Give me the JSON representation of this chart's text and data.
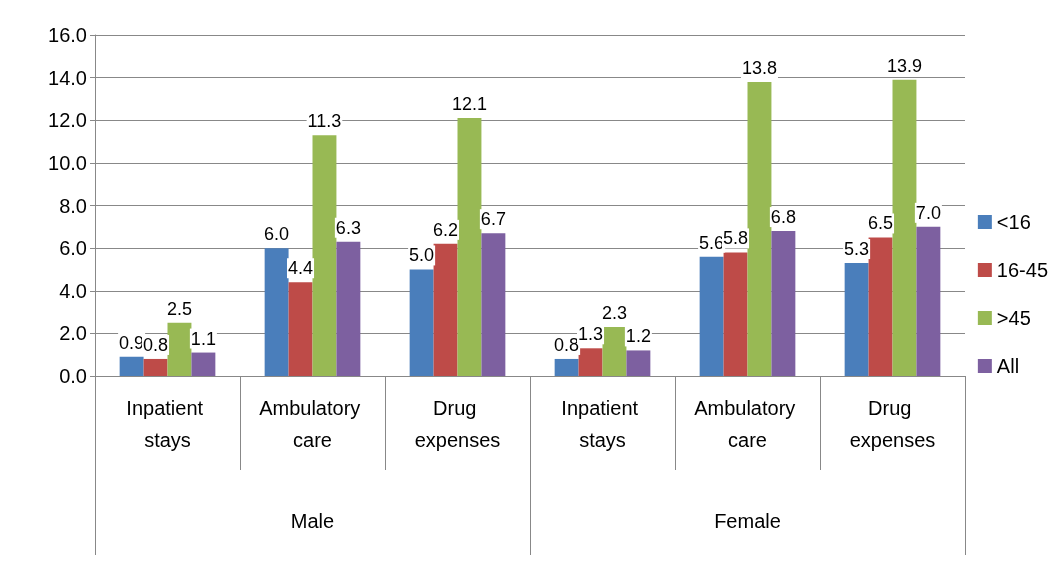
{
  "chart_data": {
    "type": "bar",
    "categories": [
      "Inpatient stays",
      "Ambulatory care",
      "Drug expenses",
      "Inpatient stays",
      "Ambulatory care",
      "Drug expenses"
    ],
    "annotations": [
      "Male",
      "Female"
    ],
    "series": [
      {
        "name": "<16",
        "color": "#4a7ebb",
        "values": [
          0.9,
          6.0,
          5.0,
          0.8,
          5.6,
          5.3
        ],
        "value_labels": [
          "0.9",
          "6.0",
          "5.0",
          "0.8",
          "5.6",
          "5.3"
        ]
      },
      {
        "name": "16-45",
        "color": "#be4b48",
        "values": [
          0.8,
          4.4,
          6.2,
          1.3,
          5.8,
          6.5
        ],
        "value_labels": [
          "0.8",
          "4.4",
          "6.2",
          "1.3",
          "5.8",
          "6.5"
        ]
      },
      {
        "name": ">45",
        "color": "#98b954",
        "values": [
          2.5,
          11.3,
          12.1,
          2.3,
          13.8,
          13.9
        ],
        "value_labels": [
          "2.5",
          "11.3",
          "12.1",
          "2.3",
          "13.8",
          "13.9"
        ]
      },
      {
        "name": "All",
        "color": "#7d60a0",
        "values": [
          1.1,
          6.3,
          6.7,
          1.2,
          6.8,
          7.0
        ],
        "value_labels": [
          "1.1",
          "6.3",
          "6.7",
          "1.2",
          "6.8",
          "7.0"
        ]
      }
    ],
    "ylim": [
      0,
      16
    ],
    "yticks": [
      {
        "value": 0,
        "label": "0.0"
      },
      {
        "value": 2,
        "label": "2.0"
      },
      {
        "value": 4,
        "label": "4.0"
      },
      {
        "value": 6,
        "label": "6.0"
      },
      {
        "value": 8,
        "label": "8.0"
      },
      {
        "value": 10,
        "label": "10.0"
      },
      {
        "value": 12,
        "label": "12.0"
      },
      {
        "value": 14,
        "label": "14.0"
      },
      {
        "value": 16,
        "label": "16.0"
      }
    ],
    "grid": "y",
    "legend": "right"
  }
}
